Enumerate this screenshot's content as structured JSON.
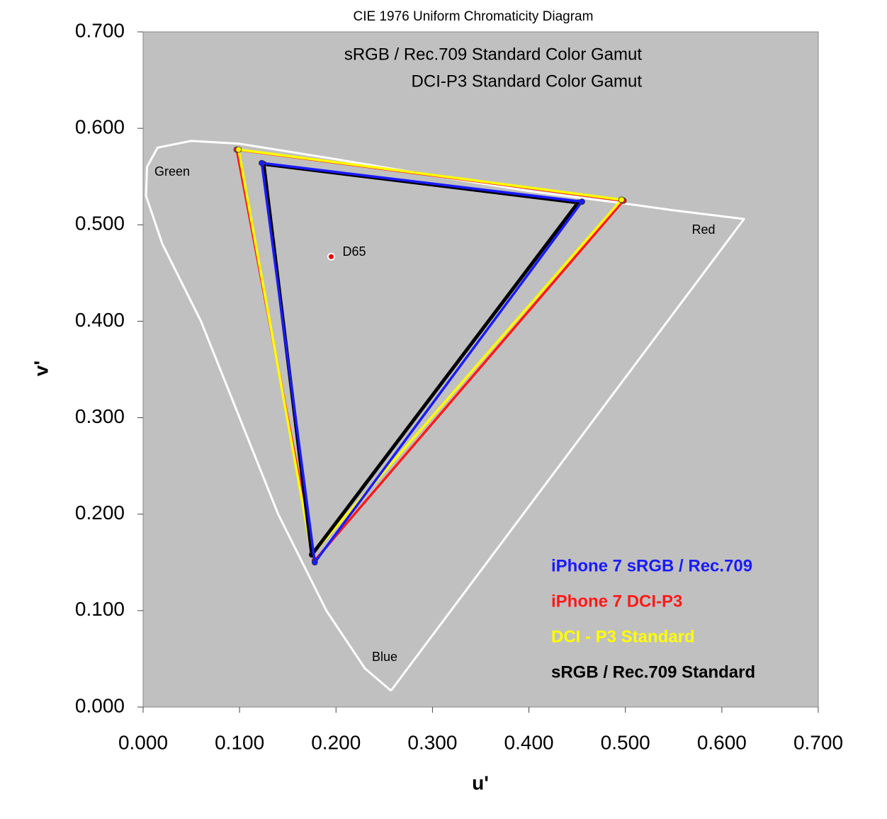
{
  "chart_data": {
    "type": "line",
    "title": "CIE 1976 Uniform Chromaticity Diagram",
    "subtitles": [
      "sRGB / Rec.709 Standard Color Gamut",
      "DCI-P3 Standard Color Gamut"
    ],
    "x_label": "u'",
    "y_label": "v'",
    "xlim": [
      0,
      0.7
    ],
    "ylim": [
      0,
      0.7
    ],
    "xticks": [
      {
        "value": 0,
        "label": "0.000"
      },
      {
        "value": 0.1,
        "label": "0.100"
      },
      {
        "value": 0.2,
        "label": "0.200"
      },
      {
        "value": 0.3,
        "label": "0.300"
      },
      {
        "value": 0.4,
        "label": "0.400"
      },
      {
        "value": 0.5,
        "label": "0.500"
      },
      {
        "value": 0.6,
        "label": "0.600"
      },
      {
        "value": 0.7,
        "label": "0.700"
      }
    ],
    "yticks": [
      {
        "value": 0,
        "label": "0.000"
      },
      {
        "value": 0.1,
        "label": "0.100"
      },
      {
        "value": 0.2,
        "label": "0.200"
      },
      {
        "value": 0.3,
        "label": "0.300"
      },
      {
        "value": 0.4,
        "label": "0.400"
      },
      {
        "value": 0.5,
        "label": "0.500"
      },
      {
        "value": 0.6,
        "label": "0.600"
      },
      {
        "value": 0.7,
        "label": "0.700"
      }
    ],
    "plot_background": "#c0c0c0",
    "locus": {
      "color": "#ffffff",
      "x": [
        0.257,
        0.23,
        0.19,
        0.14,
        0.1,
        0.06,
        0.02,
        0.003,
        0.004,
        0.015,
        0.05,
        0.1,
        0.2,
        0.3,
        0.4,
        0.5,
        0.55,
        0.623,
        0.257
      ],
      "values": [
        0.017,
        0.04,
        0.1,
        0.2,
        0.3,
        0.4,
        0.48,
        0.53,
        0.56,
        0.58,
        0.587,
        0.584,
        0.568,
        0.551,
        0.535,
        0.522,
        0.515,
        0.506,
        0.017
      ]
    },
    "region_labels": [
      "Green",
      "Red",
      "Blue"
    ],
    "white_point": {
      "label": "D65",
      "x": 0.195,
      "y": 0.467
    },
    "series": [
      {
        "name": "iPhone 7 DCI-P3",
        "color": "#ff1a1a",
        "x": [
          0.498,
          0.097,
          0.178,
          0.498
        ],
        "values": [
          0.525,
          0.578,
          0.152,
          0.525
        ]
      },
      {
        "name": "DCI - P3 Standard",
        "color": "#ffff00",
        "x": [
          0.496,
          0.099,
          0.175,
          0.496
        ],
        "values": [
          0.526,
          0.578,
          0.158,
          0.526
        ]
      },
      {
        "name": "sRGB / Rec.709 Standard",
        "color": "#000000",
        "x": [
          0.451,
          0.125,
          0.175,
          0.451
        ],
        "values": [
          0.523,
          0.563,
          0.158,
          0.523
        ]
      },
      {
        "name": "iPhone 7 sRGB / Rec.709",
        "color": "#1a1aff",
        "x": [
          0.455,
          0.123,
          0.178,
          0.455
        ],
        "values": [
          0.524,
          0.564,
          0.15,
          0.524
        ]
      }
    ],
    "legend_order": [
      3,
      0,
      1,
      2
    ]
  }
}
